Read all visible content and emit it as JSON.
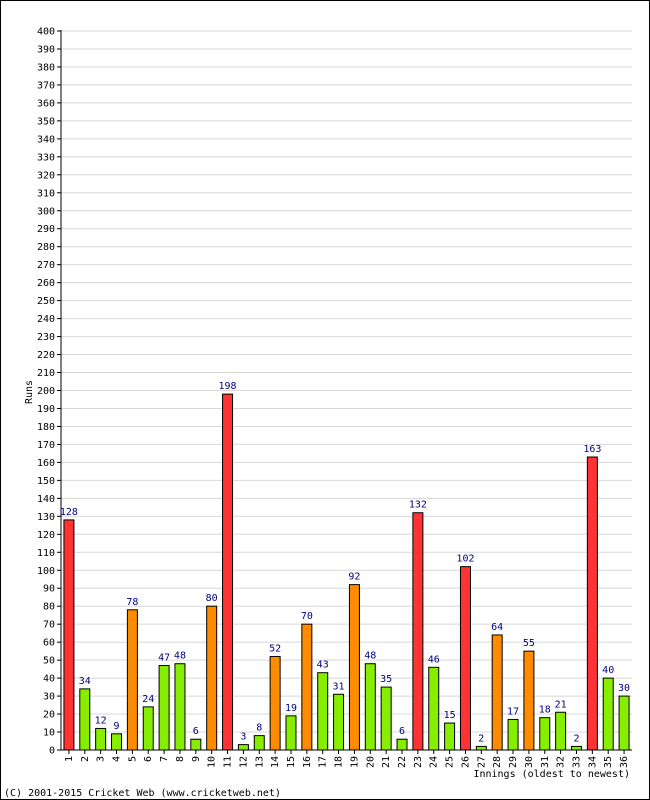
{
  "chart_data": {
    "type": "bar",
    "ylabel": "Runs",
    "xlabel": "Innings (oldest to newest)",
    "ylim": [
      0,
      400
    ],
    "ytick_step": 10,
    "grid": true,
    "categories": [
      "1",
      "2",
      "3",
      "4",
      "5",
      "6",
      "7",
      "8",
      "9",
      "10",
      "11",
      "12",
      "13",
      "14",
      "15",
      "16",
      "17",
      "18",
      "19",
      "20",
      "21",
      "22",
      "23",
      "24",
      "25",
      "26",
      "27",
      "28",
      "29",
      "30",
      "31",
      "32",
      "33",
      "34",
      "35",
      "36"
    ],
    "values": [
      128,
      34,
      12,
      9,
      78,
      24,
      47,
      48,
      6,
      80,
      198,
      3,
      8,
      52,
      19,
      70,
      43,
      31,
      92,
      48,
      35,
      6,
      132,
      46,
      15,
      102,
      2,
      64,
      17,
      55,
      18,
      21,
      2,
      163,
      40,
      30
    ],
    "bar_colors": {
      "century": "#ff3333",
      "fifty": "#ff8c00",
      "other": "#88ee00"
    },
    "color_rule": "red >= 100, orange >= 50, green otherwise",
    "label_color": "#000080"
  },
  "footer": {
    "copyright": "(C) 2001-2015 Cricket Web (www.cricketweb.net)"
  }
}
